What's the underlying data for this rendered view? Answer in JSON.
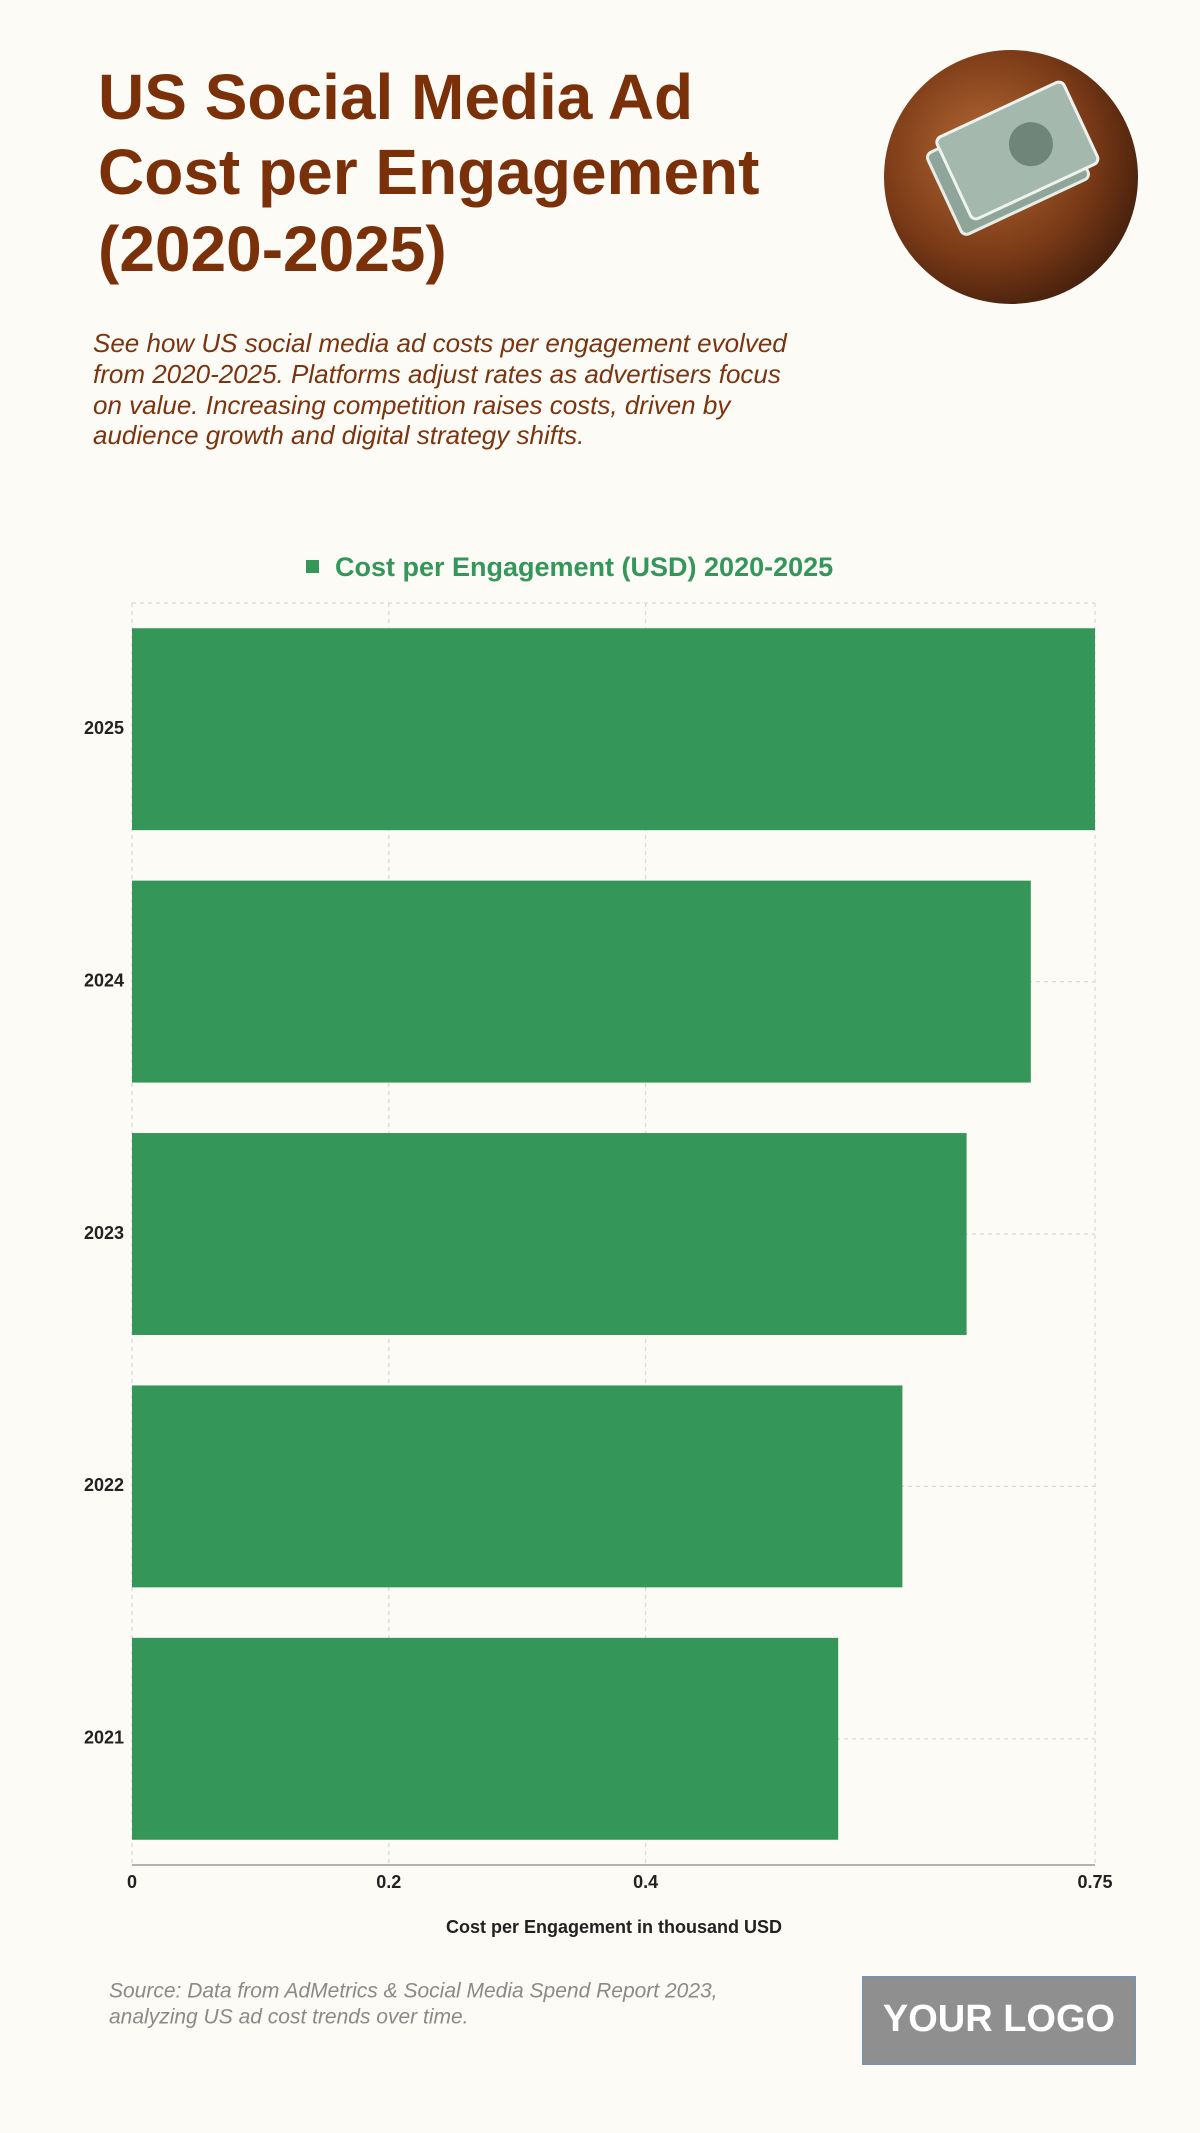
{
  "title_lines": [
    "US Social Media Ad",
    "Cost per Engagement",
    "(2020-2025)"
  ],
  "subtitle_lines": [
    "See how US social media ad costs per engagement evolved",
    "from 2020-2025. Platforms adjust rates as advertisers focus",
    "on value. Increasing competition raises costs, driven by",
    "audience growth and digital strategy shifts."
  ],
  "chart_data": {
    "type": "bar",
    "orientation": "horizontal",
    "categories": [
      "2025",
      "2024",
      "2023",
      "2022",
      "2021"
    ],
    "series": [
      {
        "name": "Cost per Engagement (USD) 2020-2025",
        "color": "#35965a",
        "values": [
          0.75,
          0.7,
          0.65,
          0.6,
          0.55
        ]
      }
    ],
    "xlim": [
      0,
      0.75
    ],
    "xticks": [
      0,
      0.2,
      0.4,
      0.75
    ],
    "grid": true,
    "xlabel": "Cost per Engagement in thousand USD",
    "legend": "top"
  },
  "source_lines": [
    "Source: Data from AdMetrics & Social Media Spend Report 2023,",
    "analyzing US ad cost trends over time."
  ],
  "logo": "YOUR LOGO"
}
